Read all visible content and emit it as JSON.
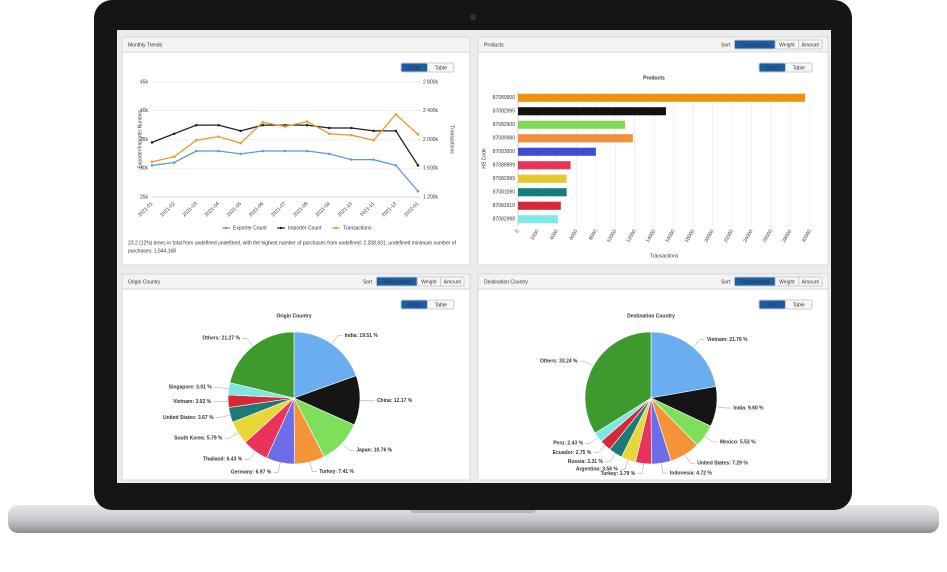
{
  "panels": [
    {
      "title": "Monthly Trends",
      "toggle": [
        "Chart",
        "Table"
      ]
    },
    {
      "title": "Products",
      "sort": [
        "Sort",
        "Transactions",
        "Weight",
        "Amount"
      ],
      "toggle": [
        "Chart",
        "Table"
      ]
    },
    {
      "title": "Origin Country",
      "sort": [
        "Sort",
        "Transactions",
        "Weight",
        "Amount"
      ],
      "toggle": [
        "Chart",
        "Table"
      ]
    },
    {
      "title": "Destination Country",
      "sort": [
        "Sort",
        "Transactions",
        "Weight",
        "Amount"
      ],
      "toggle": [
        "Chart",
        "Table"
      ]
    }
  ],
  "note": [
    "23.2 (12%) times in total from undefined undefined, with the highest number of purchases from undefined: 2,208,931; undefined minimum number of",
    "purchases: 1,544,168"
  ],
  "chart_data": [
    {
      "type": "line",
      "categories": [
        "2021-01",
        "2021-02",
        "2021-03",
        "2021-04",
        "2021-05",
        "2021-06",
        "2021-07",
        "2021-08",
        "2021-09",
        "2021-10",
        "2021-11",
        "2021-12",
        "2022-01"
      ],
      "ylabel": "Exporter/Importer Number",
      "y2label": "Transactions",
      "ylim": [
        25000,
        45000
      ],
      "yticks": [
        {
          "value": 25000,
          "label": "25k"
        },
        {
          "value": 30000,
          "label": "30k"
        },
        {
          "value": 35000,
          "label": "35k"
        },
        {
          "value": 40000,
          "label": "40k"
        },
        {
          "value": 45000,
          "label": "45k"
        }
      ],
      "y2lim": [
        1200000,
        2800000
      ],
      "y2ticks": [
        {
          "value": 1200000,
          "label": "1 200k"
        },
        {
          "value": 1600000,
          "label": "1 600k"
        },
        {
          "value": 2000000,
          "label": "2 000k"
        },
        {
          "value": 2400000,
          "label": "2 400k"
        },
        {
          "value": 2800000,
          "label": "2 800k"
        }
      ],
      "grid": true,
      "series": [
        {
          "name": "Exporter Count",
          "color": "#5b9bd5",
          "values": [
            30500,
            31000,
            33000,
            33000,
            32500,
            33000,
            33000,
            33000,
            32500,
            31500,
            31500,
            30500,
            26000
          ]
        },
        {
          "name": "Importer Count",
          "color": "#222222",
          "values": [
            34500,
            36000,
            37500,
            37500,
            36500,
            37500,
            37500,
            37500,
            37000,
            37000,
            36500,
            36500,
            30500
          ]
        },
        {
          "name": "Transactions",
          "color": "#f0962a",
          "axis": "y2",
          "values": [
            1690000,
            1760000,
            1990000,
            2040000,
            1950000,
            2240000,
            2180000,
            2250000,
            2080000,
            2060000,
            1990000,
            2350000,
            2070000
          ]
        }
      ]
    },
    {
      "type": "hbar",
      "title": "Products",
      "ylabel": "HS Code",
      "xlabel": "Transactions",
      "categories": [
        "87089900",
        "87082995",
        "87082900",
        "87089980",
        "87083000",
        "87089999",
        "87082999",
        "87081090",
        "87082910",
        "87082998"
      ],
      "values": [
        29500,
        15200,
        11000,
        11800,
        8000,
        5400,
        5000,
        5000,
        4400,
        4100
      ],
      "colors": [
        "#f0920f",
        "#111111",
        "#7ed957",
        "#f28e3c",
        "#3b4fd1",
        "#e8335b",
        "#e8c72a",
        "#157d7b",
        "#d62839",
        "#7ee8e8"
      ],
      "xlim": [
        0,
        30000
      ],
      "xticks": [
        0,
        2000,
        4000,
        6000,
        8000,
        10000,
        12000,
        14000,
        16000,
        18000,
        20000,
        22000,
        24000,
        26000,
        28000,
        30000
      ],
      "grid": true
    },
    {
      "type": "pie",
      "title": "Origin Country",
      "categories": [
        "India",
        "China",
        "Japan",
        "Turkey",
        "Germany",
        "Thailand",
        "South Korea",
        "United States",
        "Vietnam",
        "Singapore",
        "Others"
      ],
      "values": [
        19.51,
        12.17,
        10.76,
        7.41,
        6.97,
        6.43,
        5.79,
        3.67,
        3.02,
        3.01,
        21.27
      ],
      "value_labels": [
        "India: 19.51 %",
        "China: 12.17 %",
        "Japan: 10.76 %",
        "Turkey: 7.41 %",
        "Germany: 6.97 %",
        "Thailand: 6.43 %",
        "South Korea: 5.79 %",
        "United States: 3.67 %",
        "Vietnam: 3.02 %",
        "Singapore: 3.01 %",
        "Others: 21.27 %"
      ],
      "colors": [
        "#6aaef0",
        "#151515",
        "#7ee05a",
        "#f39436",
        "#6b6ee8",
        "#e8335b",
        "#e8d63a",
        "#1e7a76",
        "#d62839",
        "#7ee8e0",
        "#3f9a2e"
      ]
    },
    {
      "type": "pie",
      "title": "Destination Country",
      "categories": [
        "Vietnam",
        "India",
        "Mexico",
        "United States",
        "Indonesia",
        "Turkey",
        "Argentina",
        "Russia",
        "Ecuador",
        "Peru",
        "Others"
      ],
      "values": [
        21.76,
        9.6,
        5.53,
        7.29,
        4.72,
        3.79,
        3.56,
        3.31,
        2.75,
        2.43,
        33.24
      ],
      "value_labels": [
        "Vietnam: 21.76 %",
        "India: 9.60 %",
        "Mexico: 5.53 %",
        "United States: 7.29 %",
        "Indonesia: 4.72 %",
        "Turkey: 3.79 %",
        "Argentina: 3.56 %",
        "Russia: 3.31 %",
        "Ecuador: 2.75 %",
        "Peru: 2.43 %",
        "Others: 33.24 %"
      ],
      "colors": [
        "#6aaef0",
        "#151515",
        "#7ee05a",
        "#f39436",
        "#6b6ee8",
        "#e8335b",
        "#e8d63a",
        "#1e7a76",
        "#d62839",
        "#7ee8e0",
        "#3f9a2e"
      ]
    }
  ]
}
